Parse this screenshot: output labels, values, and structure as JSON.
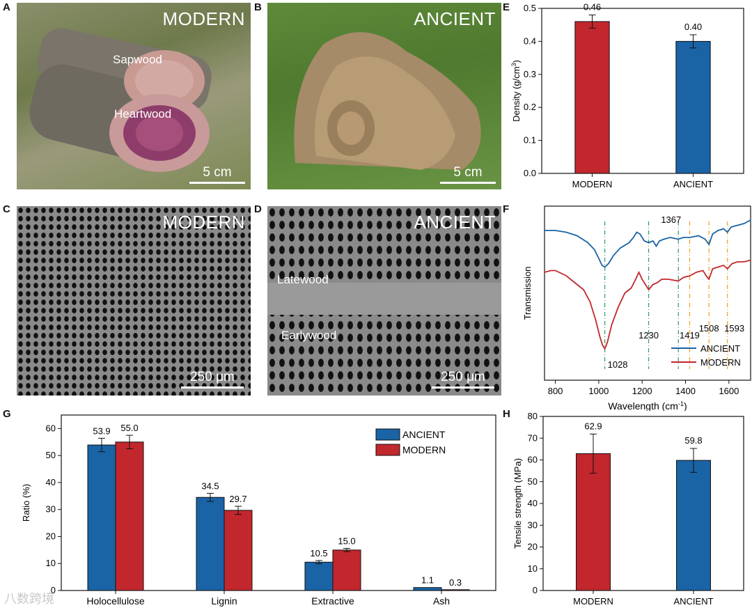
{
  "figure": {
    "panel_labels": [
      "A",
      "B",
      "C",
      "D",
      "E",
      "F",
      "G",
      "H"
    ],
    "photo_a": {
      "title": "MODERN",
      "label_sapwood": "Sapwood",
      "label_heartwood": "Heartwood",
      "scale": "5 cm"
    },
    "photo_b": {
      "title": "ANCIENT",
      "scale": "5 cm"
    },
    "sem_c": {
      "title": "MODERN",
      "scale": "250 μm"
    },
    "sem_d": {
      "title": "ANCIENT",
      "label_latewood": "Latewood",
      "label_earlywood": "Earlywood",
      "scale": "250 μm"
    },
    "watermark": "八数跨境"
  },
  "colors": {
    "modern": "#c1272d",
    "ancient": "#1a63a5",
    "green_line": "#2a9d6b",
    "orange_line": "#f0a020"
  },
  "chart_data": [
    {
      "id": "E",
      "type": "bar",
      "categories": [
        "MODERN",
        "ANCIENT"
      ],
      "values": [
        0.46,
        0.4
      ],
      "value_labels": [
        "0.46",
        "0.40"
      ],
      "errors": [
        0.02,
        0.02
      ],
      "ylabel": "Density (g/cm",
      "ylabel_sup": "3",
      "ylabel_end": ")",
      "ylim": [
        0,
        0.5
      ],
      "yticks": [
        "0.0",
        "0.1",
        "0.2",
        "0.3",
        "0.4",
        "0.5"
      ]
    },
    {
      "id": "F",
      "type": "line",
      "xlabel": "Wavelength (cm",
      "xlabel_sup": "-1",
      "xlabel_end": ")",
      "ylabel": "Transmission",
      "xlim": [
        750,
        1700
      ],
      "xticks": [
        "800",
        "1000",
        "1200",
        "1400",
        "1600"
      ],
      "peaks": [
        {
          "x": 1028,
          "label": "1028",
          "color": "green"
        },
        {
          "x": 1230,
          "label": "1230",
          "color": "green"
        },
        {
          "x": 1367,
          "label": "1367",
          "color": "green"
        },
        {
          "x": 1419,
          "label": "1419",
          "color": "orange"
        },
        {
          "x": 1508,
          "label": "1508",
          "color": "orange"
        },
        {
          "x": 1593,
          "label": "1593",
          "color": "orange"
        }
      ],
      "series": [
        {
          "name": "ANCIENT",
          "x": [
            750,
            800,
            850,
            900,
            950,
            980,
            1000,
            1015,
            1028,
            1045,
            1070,
            1100,
            1140,
            1160,
            1175,
            1190,
            1210,
            1230,
            1250,
            1265,
            1280,
            1300,
            1330,
            1367,
            1390,
            1420,
            1460,
            1490,
            1508,
            1525,
            1550,
            1575,
            1593,
            1610,
            1640,
            1670,
            1700
          ],
          "y": [
            0.86,
            0.86,
            0.85,
            0.83,
            0.79,
            0.75,
            0.7,
            0.66,
            0.65,
            0.67,
            0.72,
            0.76,
            0.79,
            0.82,
            0.85,
            0.84,
            0.8,
            0.79,
            0.8,
            0.77,
            0.8,
            0.81,
            0.82,
            0.81,
            0.82,
            0.82,
            0.83,
            0.81,
            0.78,
            0.84,
            0.86,
            0.87,
            0.85,
            0.88,
            0.89,
            0.9,
            0.92
          ]
        },
        {
          "name": "MODERN",
          "x": [
            750,
            780,
            800,
            850,
            900,
            930,
            960,
            985,
            1005,
            1018,
            1028,
            1040,
            1060,
            1090,
            1120,
            1150,
            1170,
            1185,
            1200,
            1215,
            1230,
            1250,
            1270,
            1290,
            1320,
            1367,
            1390,
            1420,
            1450,
            1480,
            1495,
            1508,
            1525,
            1550,
            1575,
            1593,
            1615,
            1640,
            1670,
            1700
          ],
          "y": [
            0.62,
            0.63,
            0.63,
            0.6,
            0.55,
            0.52,
            0.45,
            0.35,
            0.25,
            0.2,
            0.18,
            0.22,
            0.32,
            0.42,
            0.5,
            0.53,
            0.58,
            0.62,
            0.58,
            0.55,
            0.52,
            0.55,
            0.56,
            0.58,
            0.58,
            0.57,
            0.59,
            0.6,
            0.62,
            0.63,
            0.6,
            0.58,
            0.64,
            0.65,
            0.66,
            0.64,
            0.67,
            0.68,
            0.68,
            0.69
          ]
        }
      ]
    },
    {
      "id": "G",
      "type": "bar",
      "categories": [
        "Holocellulose",
        "Lignin",
        "Extractive",
        "Ash"
      ],
      "series": [
        {
          "name": "ANCIENT",
          "values": [
            53.9,
            34.5,
            10.5,
            1.1
          ],
          "labels": [
            "53.9",
            "34.5",
            "10.5",
            "1.1"
          ],
          "errors": [
            2.5,
            1.5,
            0.6,
            0.0
          ]
        },
        {
          "name": "MODERN",
          "values": [
            55.0,
            29.7,
            15.0,
            0.3
          ],
          "labels": [
            "55.0",
            "29.7",
            "15.0",
            "0.3"
          ],
          "errors": [
            2.5,
            1.5,
            0.6,
            0.0
          ]
        }
      ],
      "ylabel": "Ratio (%)",
      "ylim": [
        0,
        65
      ],
      "yticks": [
        "0",
        "10",
        "20",
        "30",
        "40",
        "50",
        "60"
      ],
      "legend": "top-right"
    },
    {
      "id": "H",
      "type": "bar",
      "categories": [
        "MODERN",
        "ANCIENT"
      ],
      "values": [
        62.9,
        59.8
      ],
      "value_labels": [
        "62.9",
        "59.8"
      ],
      "errors": [
        9.0,
        5.5
      ],
      "ylabel": "Tensile strength (MPa)",
      "ylim": [
        0,
        80
      ],
      "yticks": [
        "0",
        "10",
        "20",
        "30",
        "40",
        "50",
        "60",
        "70",
        "80"
      ]
    }
  ]
}
